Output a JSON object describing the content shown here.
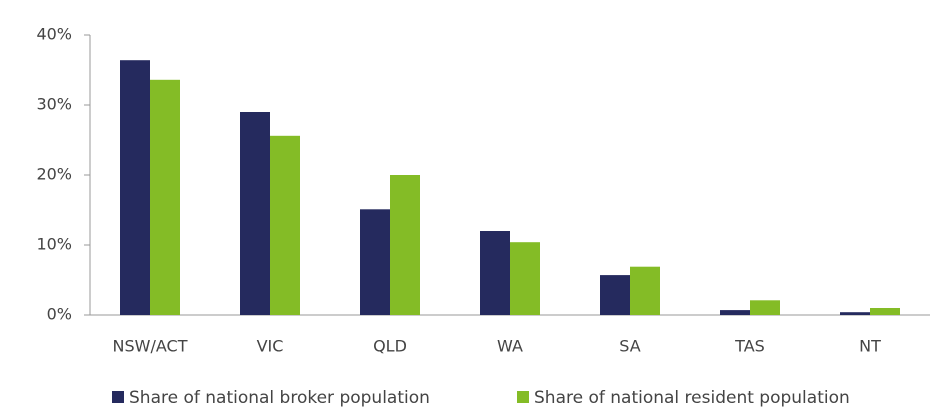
{
  "chart_data": {
    "type": "bar",
    "categories": [
      "NSW/ACT",
      "VIC",
      "QLD",
      "WA",
      "SA",
      "TAS",
      "NT"
    ],
    "series": [
      {
        "name": "Share of national broker population",
        "color": "#252a5e",
        "values": [
          36.4,
          29.0,
          15.1,
          12.0,
          5.7,
          0.7,
          0.4
        ]
      },
      {
        "name": "Share of national resident population",
        "color": "#84bc26",
        "values": [
          33.6,
          25.6,
          20.0,
          10.4,
          6.9,
          2.1,
          1.0
        ]
      }
    ],
    "ylim": [
      0,
      40
    ],
    "yticks": [
      {
        "value": 0,
        "label": "0%"
      },
      {
        "value": 10,
        "label": "10%"
      },
      {
        "value": 20,
        "label": "20%"
      },
      {
        "value": 30,
        "label": "30%"
      },
      {
        "value": 40,
        "label": "40%"
      }
    ],
    "grid": false,
    "legend": "bottom"
  }
}
